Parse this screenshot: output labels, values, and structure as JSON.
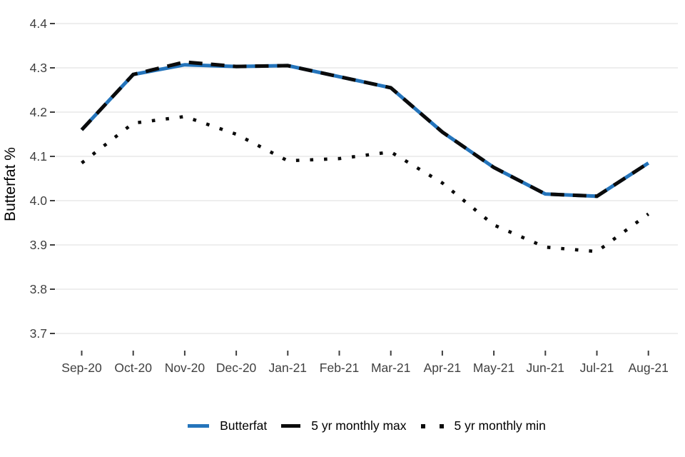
{
  "colors": {
    "butterfat_blue": "#2474bb",
    "series_black": "#0b0b0b",
    "gridline": "#e8e8e8",
    "tick_mark": "#3f3f3f",
    "tick_label": "#404040",
    "axis_title": "#000000"
  },
  "legend": {
    "items": [
      {
        "label": "Butterfat",
        "swatch": "solid-line-swatch"
      },
      {
        "label": "5 yr monthly max",
        "swatch": "dashed-line-swatch"
      },
      {
        "label": "5 yr monthly min",
        "swatch": "dotted-line-swatch"
      }
    ]
  },
  "chart_data": {
    "type": "line",
    "title": "",
    "xlabel": "",
    "ylabel": "Butterfat %",
    "ylim": [
      3.7,
      4.4
    ],
    "yticks": [
      "4.4",
      "4.3",
      "4.2",
      "4.1",
      "4.0",
      "3.9",
      "3.8",
      "3.7"
    ],
    "grid": "horizontal-only",
    "legend_position": "bottom-center",
    "categories": [
      "Sep-20",
      "Oct-20",
      "Nov-20",
      "Dec-20",
      "Jan-21",
      "Feb-21",
      "Mar-21",
      "Apr-21",
      "May-21",
      "Jun-21",
      "Jul-21",
      "Aug-21"
    ],
    "series": [
      {
        "name": "Butterfat",
        "style": "solid",
        "color": "#2474bb",
        "values": [
          4.16,
          4.285,
          4.307,
          4.303,
          4.305,
          4.28,
          4.255,
          4.155,
          4.075,
          4.015,
          4.01,
          4.085
        ]
      },
      {
        "name": "5 yr monthly max",
        "style": "dashed",
        "color": "#0b0b0b",
        "values": [
          4.16,
          4.285,
          4.313,
          4.303,
          4.305,
          4.28,
          4.255,
          4.155,
          4.075,
          4.015,
          4.01,
          4.085
        ]
      },
      {
        "name": "5 yr monthly min",
        "style": "dotted",
        "color": "#0b0b0b",
        "values": [
          4.085,
          4.175,
          4.19,
          4.15,
          4.09,
          4.095,
          4.11,
          4.04,
          3.945,
          3.895,
          3.885,
          3.97
        ]
      }
    ]
  }
}
